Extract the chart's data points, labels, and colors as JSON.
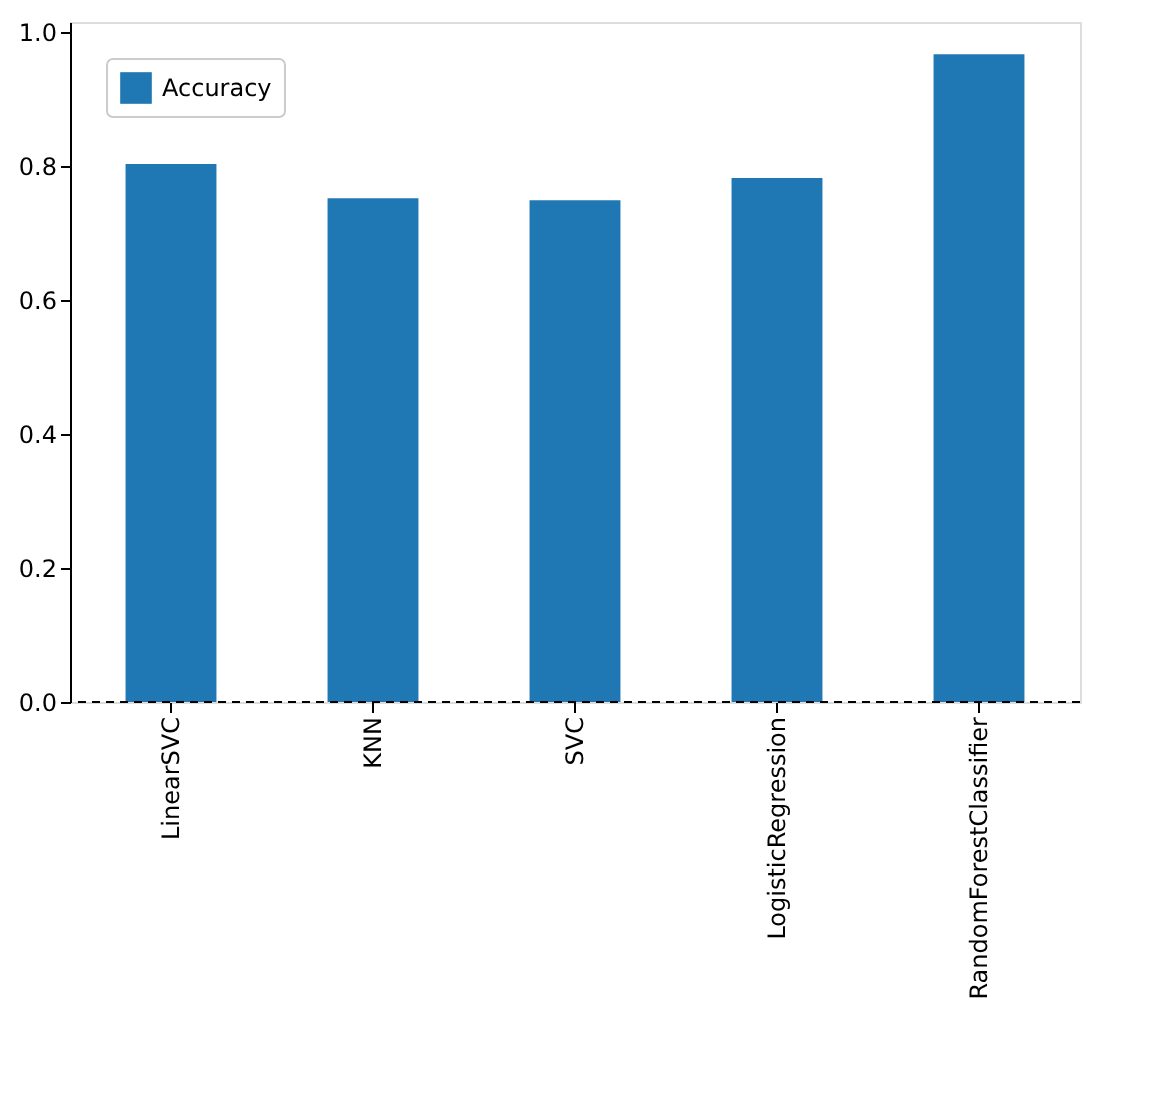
{
  "chart_data": {
    "type": "bar",
    "categories": [
      "LinearSVC",
      "KNN",
      "SVC",
      "LogisticRegression",
      "RandomForestClassifier"
    ],
    "series": [
      {
        "name": "Accuracy",
        "color": "#1f77b4",
        "values": [
          0.803,
          0.752,
          0.749,
          0.782,
          0.967
        ]
      }
    ],
    "ylim": [
      0,
      1.015
    ],
    "yticks": [
      {
        "value": 0,
        "label": "0.0"
      },
      {
        "value": 0.2,
        "label": "0.2"
      },
      {
        "value": 0.4,
        "label": "0.4"
      },
      {
        "value": 0.6,
        "label": "0.6"
      },
      {
        "value": 0.8,
        "label": "0.8"
      },
      {
        "value": 1,
        "label": "1.0"
      }
    ],
    "ref_lines": [
      {
        "axis": "y",
        "value": 0,
        "color": "#000000",
        "line_style": "dashed"
      }
    ],
    "legend": "top left"
  }
}
